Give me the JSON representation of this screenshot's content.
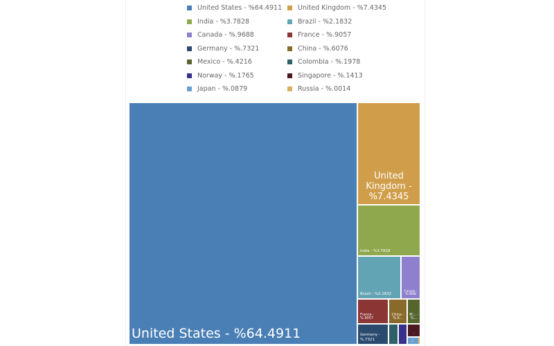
{
  "chart_data": {
    "type": "treemap",
    "title": "",
    "items": [
      {
        "name": "United States",
        "label": "United States - %64.4911",
        "value": 64.4911,
        "color": "#4a7fb5"
      },
      {
        "name": "United Kingdom",
        "label": "United Kingdom - %7.4345",
        "value": 7.4345,
        "color": "#d09e4a"
      },
      {
        "name": "India",
        "label": "India - %3.7828",
        "value": 3.7828,
        "color": "#8fa84e"
      },
      {
        "name": "Brazil",
        "label": "Brazil - %2.1832",
        "value": 2.1832,
        "color": "#63a4b4"
      },
      {
        "name": "Canada",
        "label": "Canada - %.9688",
        "value": 0.9688,
        "color": "#8e80cc"
      },
      {
        "name": "France",
        "label": "France - %.9057",
        "value": 0.9057,
        "color": "#8b3535"
      },
      {
        "name": "Germany",
        "label": "Germany - %.7321",
        "value": 0.7321,
        "color": "#2a4a6e"
      },
      {
        "name": "China",
        "label": "China - %.6076",
        "value": 0.6076,
        "color": "#8a6a2a"
      },
      {
        "name": "Mexico",
        "label": "Mexico - %.4216",
        "value": 0.4216,
        "color": "#56652e"
      },
      {
        "name": "Colombia",
        "label": "Colombia - %.1978",
        "value": 0.1978,
        "color": "#2e6068"
      },
      {
        "name": "Norway",
        "label": "Norway - %.1765",
        "value": 0.1765,
        "color": "#38308a"
      },
      {
        "name": "Singapore",
        "label": "Singapore - %.1413",
        "value": 0.1413,
        "color": "#4a1820"
      },
      {
        "name": "Japan",
        "label": "Japan - %.0879",
        "value": 0.0879,
        "color": "#6aa0d0"
      },
      {
        "name": "Russia",
        "label": "Russia - %.0014",
        "value": 0.0014,
        "color": "#d8b060"
      }
    ],
    "rect_labels": {
      "China": "China - %.6...",
      "Mexico": "M... - %...",
      "Colombia": "...",
      "Norway": "...",
      "Singapore": "...",
      "Japan": "J...",
      "Russia": ""
    },
    "legend_placement": "top"
  }
}
